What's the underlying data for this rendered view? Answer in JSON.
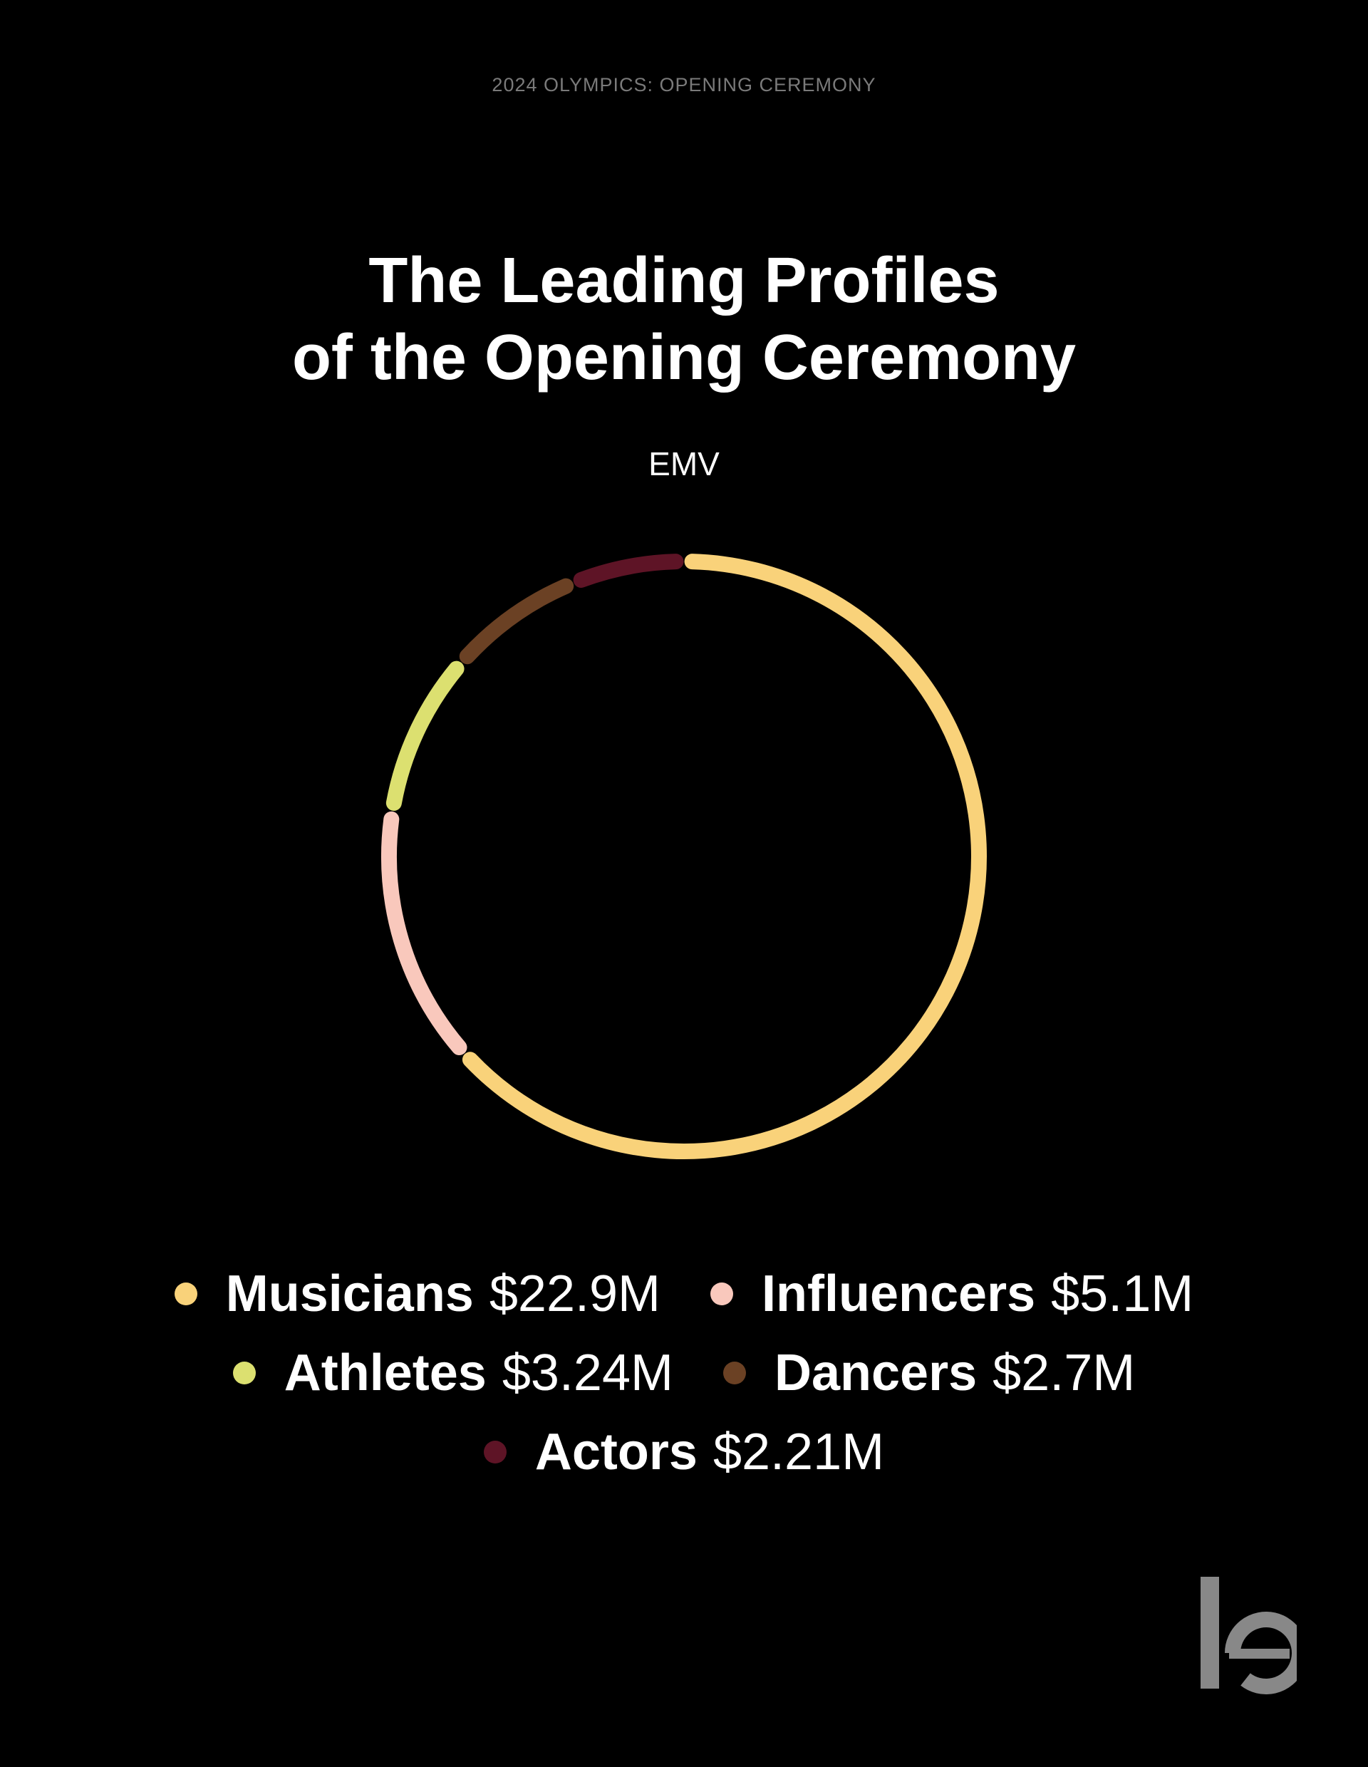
{
  "kicker": "2024 OLYMPICS: OPENING CEREMONY",
  "title_lines": [
    "The Leading Profiles",
    "of the Opening Ceremony"
  ],
  "metric_label": "EMV",
  "chart_data": {
    "type": "pie",
    "variant": "donut",
    "title": "The Leading Profiles of the Opening Ceremony",
    "subtitle": "EMV",
    "legend_position": "bottom",
    "categories": [
      "Musicians",
      "Influencers",
      "Athletes",
      "Dancers",
      "Actors"
    ],
    "values": [
      22.9,
      5.1,
      3.24,
      2.7,
      2.21
    ],
    "value_labels": [
      "$22.9M",
      "$5.1M",
      "$3.24M",
      "$2.7M",
      "$2.21M"
    ],
    "colors": [
      "#F9D27A",
      "#F9C8BC",
      "#DCE070",
      "#6B4124",
      "#5E1426"
    ]
  },
  "legend": [
    {
      "name": "Musicians",
      "value": "$22.9M"
    },
    {
      "name": "Influencers",
      "value": "$5.1M"
    },
    {
      "name": "Athletes",
      "value": "$3.24M"
    },
    {
      "name": "Dancers",
      "value": "$2.7M"
    },
    {
      "name": "Actors",
      "value": "$2.21M"
    }
  ],
  "logo_text": "le"
}
